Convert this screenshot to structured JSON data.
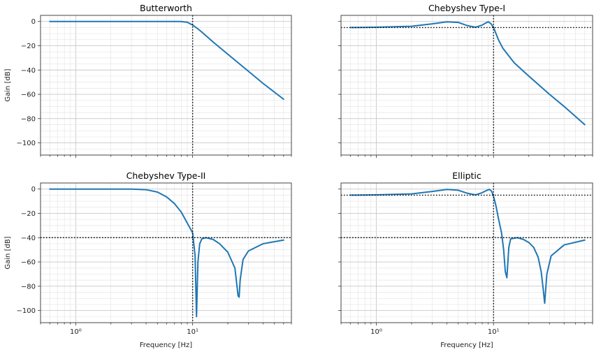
{
  "chart_data": [
    {
      "type": "line",
      "title": "Butterworth",
      "xlabel": "",
      "ylabel": "Gain [dB]",
      "xscale": "log",
      "xlim": [
        0.5,
        70
      ],
      "ylim": [
        -110,
        5
      ],
      "yticks": [
        0,
        -20,
        -40,
        -60,
        -80,
        -100
      ],
      "ytick_labels": [
        "0",
        "−20",
        "−40",
        "−60",
        "−80",
        "−100"
      ],
      "xticks": [
        1,
        10
      ],
      "xtick_labels": [
        "",
        ""
      ],
      "grid": true,
      "vlines": [
        10
      ],
      "hlines": [],
      "color": "#1f77b4",
      "series": [
        {
          "x": [
            0.6,
            1,
            2,
            3,
            4,
            5,
            6,
            7,
            8,
            9,
            10,
            11,
            12,
            15,
            20,
            30,
            40,
            60
          ],
          "y": [
            0,
            0,
            0,
            0,
            0,
            0,
            0,
            -0.02,
            -0.1,
            -0.7,
            -3.0,
            -5.8,
            -8.8,
            -17,
            -27,
            -41,
            -51,
            -64
          ]
        }
      ]
    },
    {
      "type": "line",
      "title": "Chebyshev Type-I",
      "xlabel": "",
      "ylabel": "",
      "xscale": "log",
      "xlim": [
        0.5,
        70
      ],
      "ylim": [
        -110,
        5
      ],
      "yticks": [
        0,
        -20,
        -40,
        -60,
        -80,
        -100
      ],
      "ytick_labels": [
        "",
        "",
        "",
        "",
        "",
        ""
      ],
      "xticks": [
        1,
        10
      ],
      "xtick_labels": [
        "",
        ""
      ],
      "grid": true,
      "vlines": [
        10
      ],
      "hlines": [
        -5
      ],
      "color": "#1f77b4",
      "series": [
        {
          "x": [
            0.6,
            1,
            2,
            3,
            4,
            5,
            6,
            7,
            8,
            8.5,
            9,
            9.5,
            10,
            10.5,
            11,
            12,
            15,
            20,
            30,
            40,
            60
          ],
          "y": [
            -5,
            -4.8,
            -4,
            -2,
            -0.3,
            -0.8,
            -3.5,
            -4.8,
            -3.0,
            -1.5,
            -0.3,
            -1.8,
            -5,
            -10,
            -15,
            -22,
            -34,
            -45,
            -60,
            -70,
            -85
          ]
        }
      ]
    },
    {
      "type": "line",
      "title": "Chebyshev Type-II",
      "xlabel": "Frequency [Hz]",
      "ylabel": "Gain [dB]",
      "xscale": "log",
      "xlim": [
        0.5,
        70
      ],
      "ylim": [
        -110,
        5
      ],
      "yticks": [
        0,
        -20,
        -40,
        -60,
        -80,
        -100
      ],
      "ytick_labels": [
        "0",
        "−20",
        "−40",
        "−60",
        "−80",
        "−100"
      ],
      "xticks": [
        1,
        10
      ],
      "xtick_labels": [
        "10⁰",
        "10¹"
      ],
      "grid": true,
      "vlines": [
        10
      ],
      "hlines": [
        -40
      ],
      "color": "#1f77b4",
      "series": [
        {
          "x": [
            0.6,
            1,
            2,
            3,
            4,
            5,
            6,
            7,
            8,
            9,
            10,
            10.5,
            10.8,
            11.1,
            11.5,
            12,
            13,
            15,
            17,
            20,
            23,
            24.5,
            25,
            25.5,
            27,
            30,
            40,
            60
          ],
          "y": [
            0,
            0,
            0,
            0,
            -0.5,
            -2.5,
            -6.5,
            -12,
            -19,
            -28,
            -36,
            -55,
            -105,
            -60,
            -45,
            -41,
            -40,
            -41.5,
            -45,
            -52,
            -65,
            -88,
            -89,
            -75,
            -58,
            -51,
            -45,
            -42
          ]
        }
      ]
    },
    {
      "type": "line",
      "title": "Elliptic",
      "xlabel": "Frequency [Hz]",
      "ylabel": "",
      "xscale": "log",
      "xlim": [
        0.5,
        70
      ],
      "ylim": [
        -110,
        5
      ],
      "yticks": [
        0,
        -20,
        -40,
        -60,
        -80,
        -100
      ],
      "ytick_labels": [
        "",
        "",
        "",
        "",
        "",
        ""
      ],
      "xticks": [
        1,
        10
      ],
      "xtick_labels": [
        "10⁰",
        "10¹"
      ],
      "grid": true,
      "vlines": [
        10
      ],
      "hlines": [
        -5,
        -40
      ],
      "color": "#1f77b4",
      "series": [
        {
          "x": [
            0.6,
            1,
            2,
            3,
            4,
            5,
            6,
            7,
            8,
            8.7,
            9.2,
            9.6,
            10,
            10.5,
            11,
            11.7,
            12.2,
            12.6,
            13,
            13.5,
            14,
            16,
            18,
            20,
            22,
            24,
            25.5,
            26.5,
            27.3,
            28.5,
            31,
            40,
            60
          ],
          "y": [
            -5,
            -4.8,
            -4,
            -2,
            -0.3,
            -1,
            -3.5,
            -4.8,
            -3,
            -1.2,
            -0.3,
            -1.5,
            -6,
            -14,
            -24,
            -36,
            -50,
            -68,
            -73,
            -48,
            -41,
            -40,
            -41.5,
            -44,
            -48,
            -56,
            -68,
            -82,
            -94,
            -70,
            -55,
            -46,
            -42
          ]
        }
      ]
    }
  ]
}
